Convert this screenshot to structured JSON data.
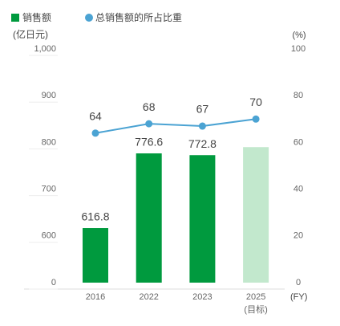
{
  "chart_data": {
    "type": "bar-line",
    "legend": [
      "销售额",
      "总销售额的所占比重"
    ],
    "y_label": "(亿日元)",
    "y2_label": "(%)",
    "x_label": "(FY)",
    "categories": [
      "2016",
      "2022",
      "2023",
      "2025"
    ],
    "category_notes": [
      null,
      null,
      null,
      "(目标)"
    ],
    "series": [
      {
        "name": "销售额",
        "type": "bar",
        "colors": [
          "#009a3e",
          "#009a3e",
          "#009a3e",
          "#c2e8cd"
        ],
        "values": [
          616.8,
          776.6,
          772.8,
          790
        ],
        "value_labels": [
          "616.8",
          "776.6",
          "772.8",
          null
        ]
      },
      {
        "name": "总销售额的所占比重",
        "type": "line",
        "axis": "y2",
        "color": "#4ba3d3",
        "values": [
          64,
          68,
          67,
          70
        ]
      }
    ],
    "ylim": [
      0,
      1000
    ],
    "y_break": [
      0,
      500
    ],
    "yticks": [
      0,
      600,
      700,
      800,
      900,
      {
        "value": 1000,
        "label": "1,000"
      }
    ],
    "y2lim": [
      0,
      100
    ],
    "y2ticks": [
      0,
      20,
      40,
      60,
      80,
      100
    ]
  }
}
